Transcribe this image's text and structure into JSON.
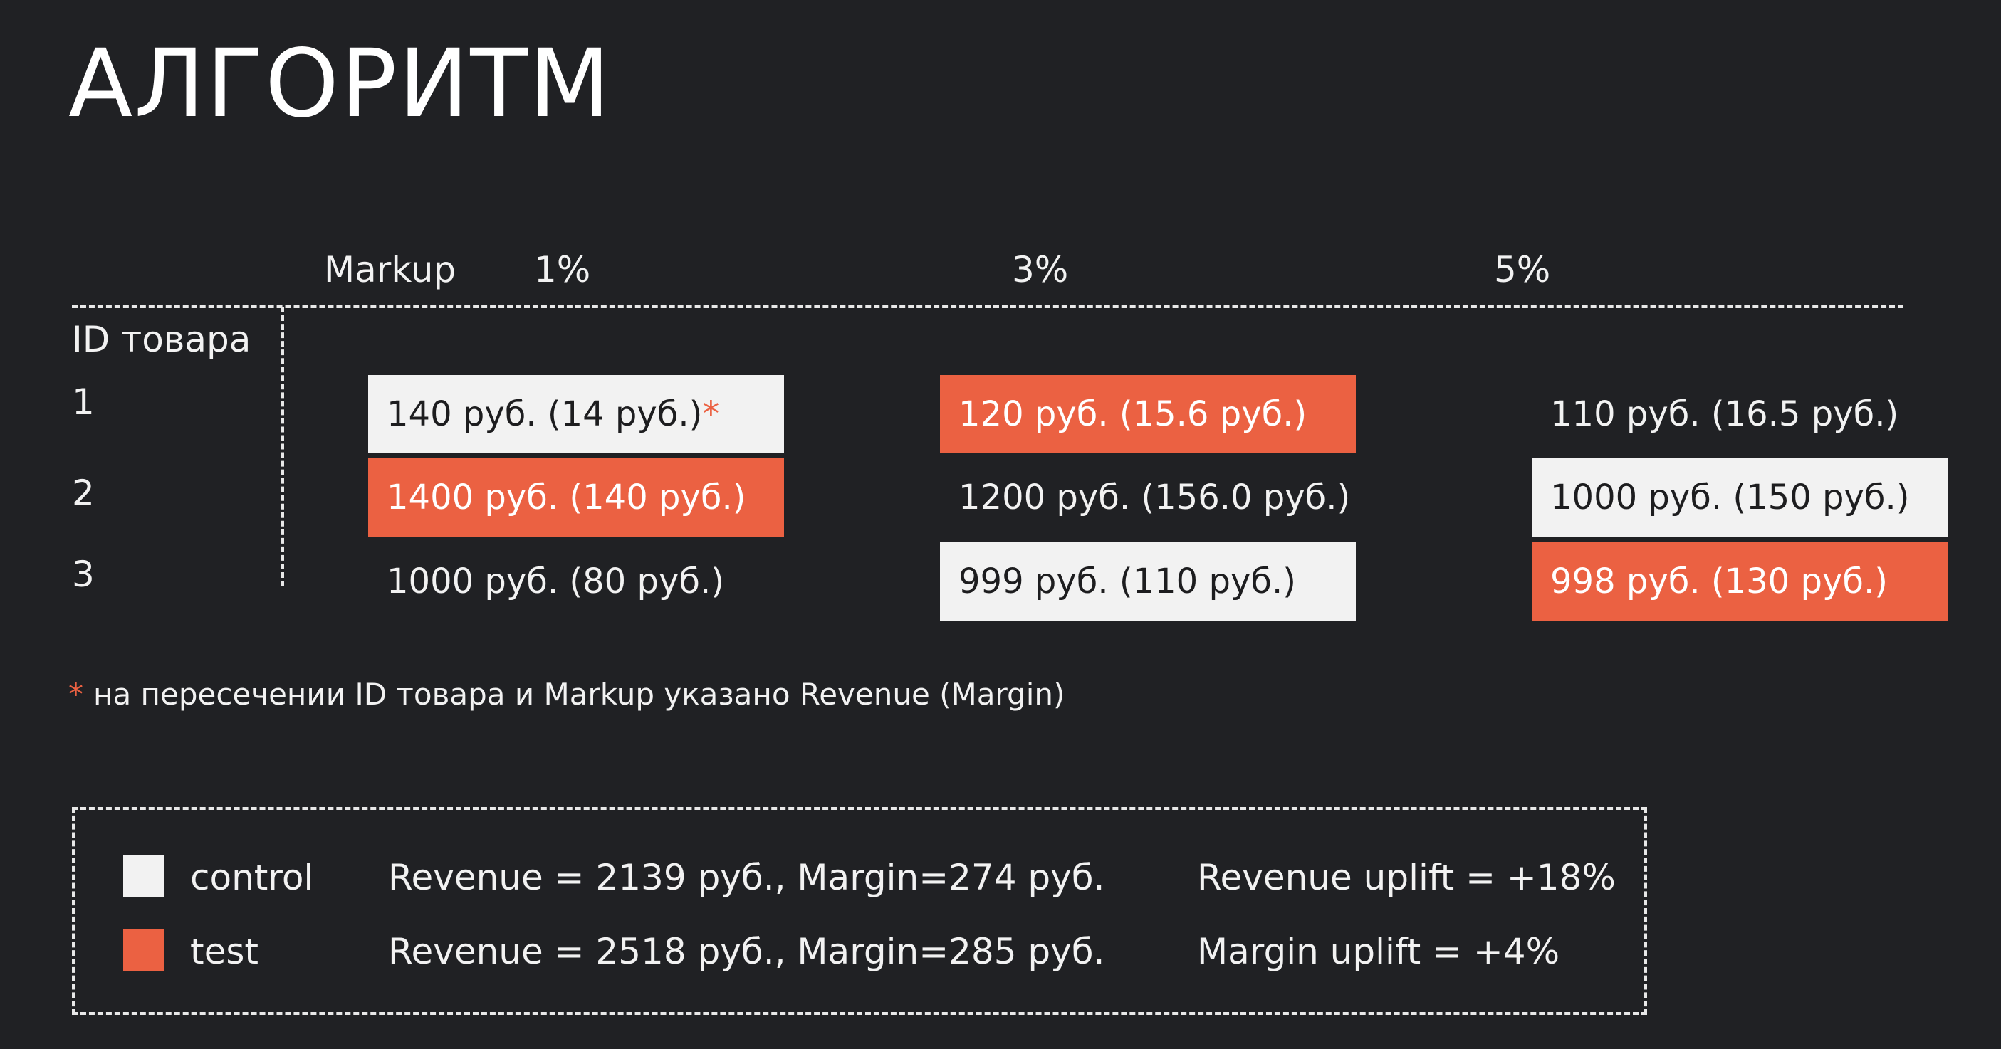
{
  "title": "АЛГОРИТМ",
  "table": {
    "markup_label": "Markup",
    "id_label": "ID товара",
    "columns": [
      "1%",
      "3%",
      "5%"
    ],
    "rows": [
      {
        "id": "1",
        "cells": [
          {
            "text": "140 руб. (14 руб.)",
            "marker": "*",
            "group": "control"
          },
          {
            "text": "120 руб. (15.6 руб.)",
            "group": "test"
          },
          {
            "text": "110 руб. (16.5 руб.)",
            "group": "none"
          }
        ]
      },
      {
        "id": "2",
        "cells": [
          {
            "text": "1400 руб. (140 руб.)",
            "group": "test"
          },
          {
            "text": "1200 руб. (156.0 руб.)",
            "group": "none"
          },
          {
            "text": "1000 руб. (150 руб.)",
            "group": "control"
          }
        ]
      },
      {
        "id": "3",
        "cells": [
          {
            "text": "1000 руб. (80 руб.)",
            "group": "none"
          },
          {
            "text": "999 руб. (110 руб.)",
            "group": "control"
          },
          {
            "text": "998 руб. (130 руб.)",
            "group": "test"
          }
        ]
      }
    ]
  },
  "footnote": {
    "marker": "*",
    "text": "на пересечении ID товара и Markup указано Revenue (Margin)"
  },
  "legend": {
    "control": {
      "label": "control",
      "stats": "Revenue = 2139 руб., Margin=274 руб.",
      "color": "#f2f2f2"
    },
    "test": {
      "label": "test",
      "stats": "Revenue = 2518 руб., Margin=285 руб.",
      "color": "#eb6142"
    },
    "revenue_uplift": "Revenue uplift = +18%",
    "margin_uplift": "Margin uplift = +4%"
  },
  "colors": {
    "background": "#202124",
    "control": "#f2f2f2",
    "test": "#eb6142"
  }
}
